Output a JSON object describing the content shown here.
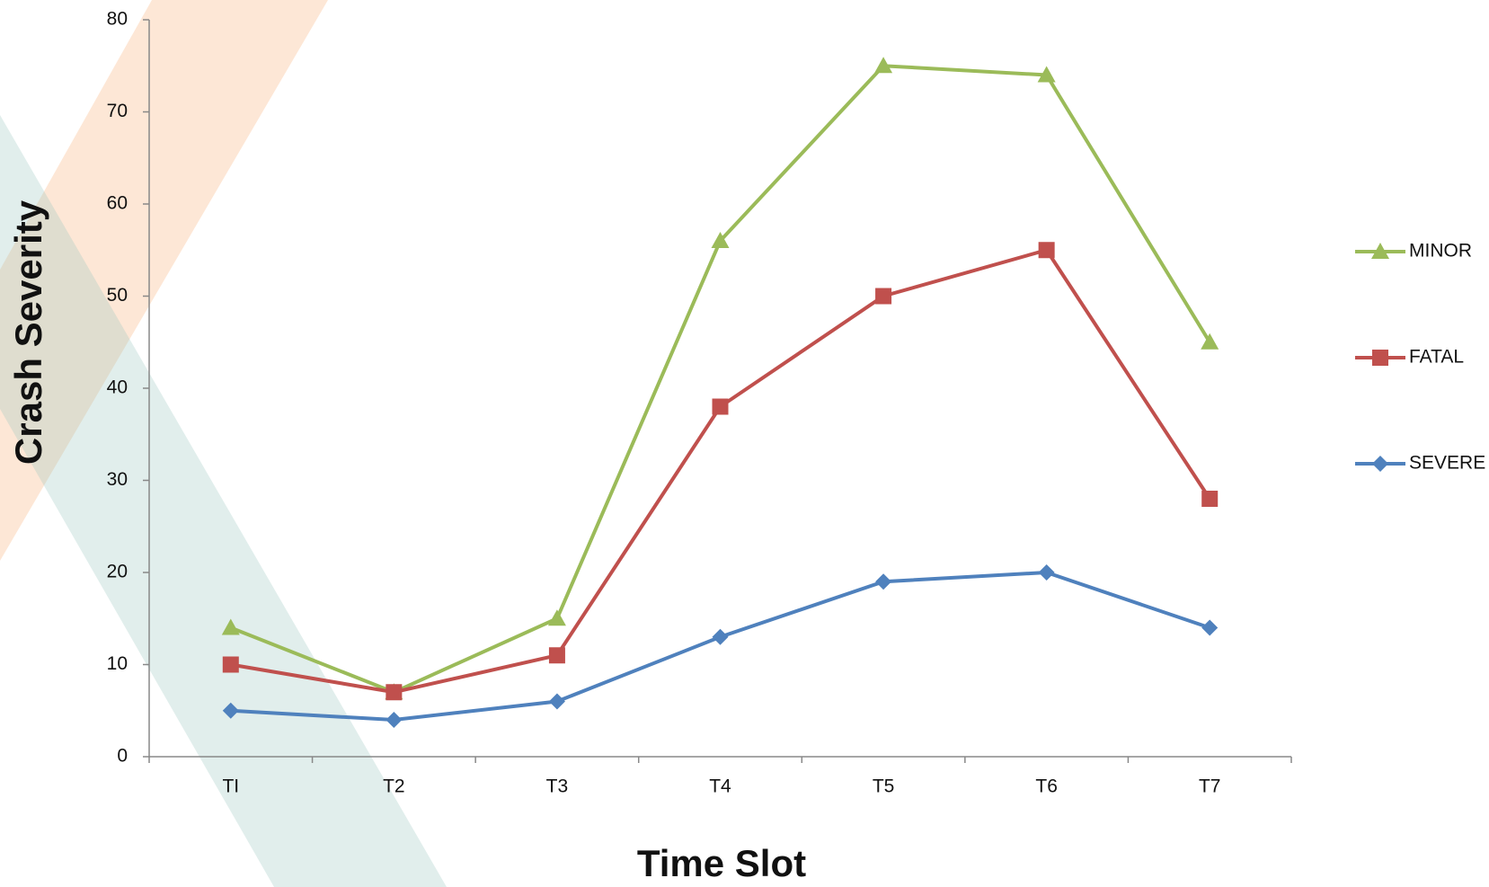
{
  "chart_data": {
    "type": "line",
    "xlabel": "Time Slot",
    "ylabel": "Crash Severity",
    "categories": [
      "TI",
      "T2",
      "T3",
      "T4",
      "T5",
      "T6",
      "T7"
    ],
    "series": [
      {
        "name": "MINOR",
        "color": "#9bbb59",
        "marker": "triangle",
        "values": [
          14,
          7,
          15,
          56,
          75,
          74,
          45
        ]
      },
      {
        "name": "FATAL",
        "color": "#c0504d",
        "marker": "square",
        "values": [
          10,
          7,
          11,
          38,
          50,
          55,
          28
        ]
      },
      {
        "name": "SEVERE",
        "color": "#4f81bd",
        "marker": "diamond",
        "values": [
          5,
          4,
          6,
          13,
          19,
          20,
          14
        ]
      }
    ],
    "ylim": [
      0,
      80
    ],
    "yticks": [
      0,
      10,
      20,
      30,
      40,
      50,
      60,
      70,
      80
    ],
    "grid": false,
    "legend": "right"
  }
}
